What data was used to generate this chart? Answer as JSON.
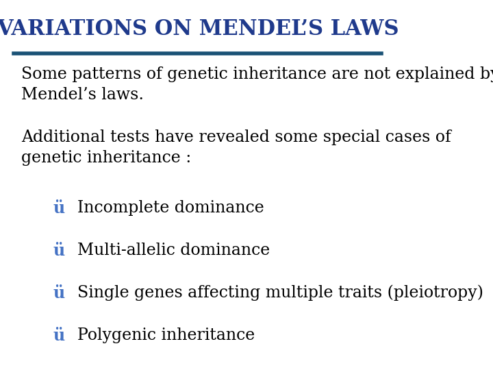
{
  "title": "VARIATIONS ON MENDEL’S LAWS",
  "title_color": "#1F3A8C",
  "title_fontsize": 22,
  "line_color": "#1A5276",
  "bg_color": "#FFFFFF",
  "body_text_color": "#000000",
  "bullet_color": "#4472C4",
  "body_para1": "Some patterns of genetic inheritance are not explained by\nMendel’s laws.",
  "body_para2": "Additional tests have revealed some special cases of\ngenetic inheritance :",
  "bullets": [
    "Incomplete dominance",
    "Multi-allelic dominance",
    "Single genes affecting multiple traits (pleiotropy)",
    "Polygenic inheritance"
  ],
  "body_fontsize": 17,
  "bullet_fontsize": 17,
  "bullet_mark": "ü"
}
